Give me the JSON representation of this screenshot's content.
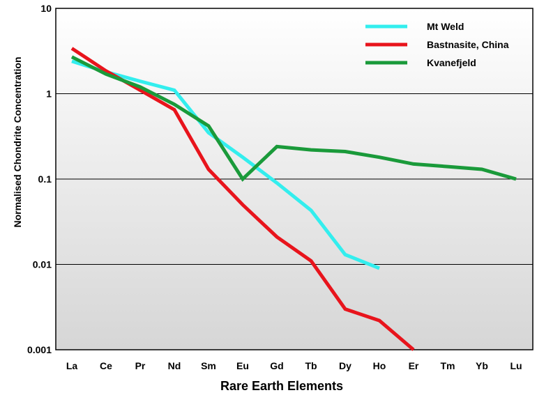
{
  "chart_data": {
    "type": "line",
    "title": "",
    "xlabel": "Rare Earth Elements",
    "ylabel": "Normalised Chondrite Concentration",
    "y_scale": "log",
    "ylim": [
      0.001,
      10
    ],
    "categories": [
      "La",
      "Ce",
      "Pr",
      "Nd",
      "Sm",
      "Eu",
      "Gd",
      "Tb",
      "Dy",
      "Ho",
      "Er",
      "Tm",
      "Yb",
      "Lu"
    ],
    "y_ticks": [
      {
        "value": 10,
        "label": "10"
      },
      {
        "value": 1,
        "label": "1"
      },
      {
        "value": 0.1,
        "label": "0.1"
      },
      {
        "value": 0.01,
        "label": "0.01"
      },
      {
        "value": 0.001,
        "label": "0.001"
      }
    ],
    "grid": "horizontal at decades",
    "legend_position": "top-right",
    "series": [
      {
        "name": "Mt Weld",
        "color": "#33eeee",
        "x": [
          "La",
          "Ce",
          "Pr",
          "Nd",
          "Sm",
          "Eu",
          "Gd",
          "Tb",
          "Dy",
          "Ho"
        ],
        "values": [
          2.4,
          1.8,
          1.4,
          1.1,
          0.35,
          0.18,
          0.09,
          0.043,
          0.013,
          0.009
        ]
      },
      {
        "name": "Bastnasite, China",
        "color": "#e8141c",
        "x": [
          "La",
          "Ce",
          "Pr",
          "Nd",
          "Sm",
          "Eu",
          "Gd",
          "Tb",
          "Dy",
          "Ho",
          "Er"
        ],
        "values": [
          3.4,
          1.85,
          1.1,
          0.65,
          0.13,
          0.05,
          0.021,
          0.011,
          0.003,
          0.0022,
          0.001
        ]
      },
      {
        "name": "Kvanefjeld",
        "color": "#1a9a3a",
        "x": [
          "La",
          "Ce",
          "Pr",
          "Nd",
          "Sm",
          "Eu",
          "Gd",
          "Tb",
          "Dy",
          "Ho",
          "Er",
          "Tm",
          "Yb",
          "Lu"
        ],
        "values": [
          2.7,
          1.7,
          1.2,
          0.75,
          0.42,
          0.1,
          0.24,
          0.22,
          0.21,
          0.18,
          0.15,
          0.14,
          0.13,
          0.1
        ]
      }
    ]
  }
}
